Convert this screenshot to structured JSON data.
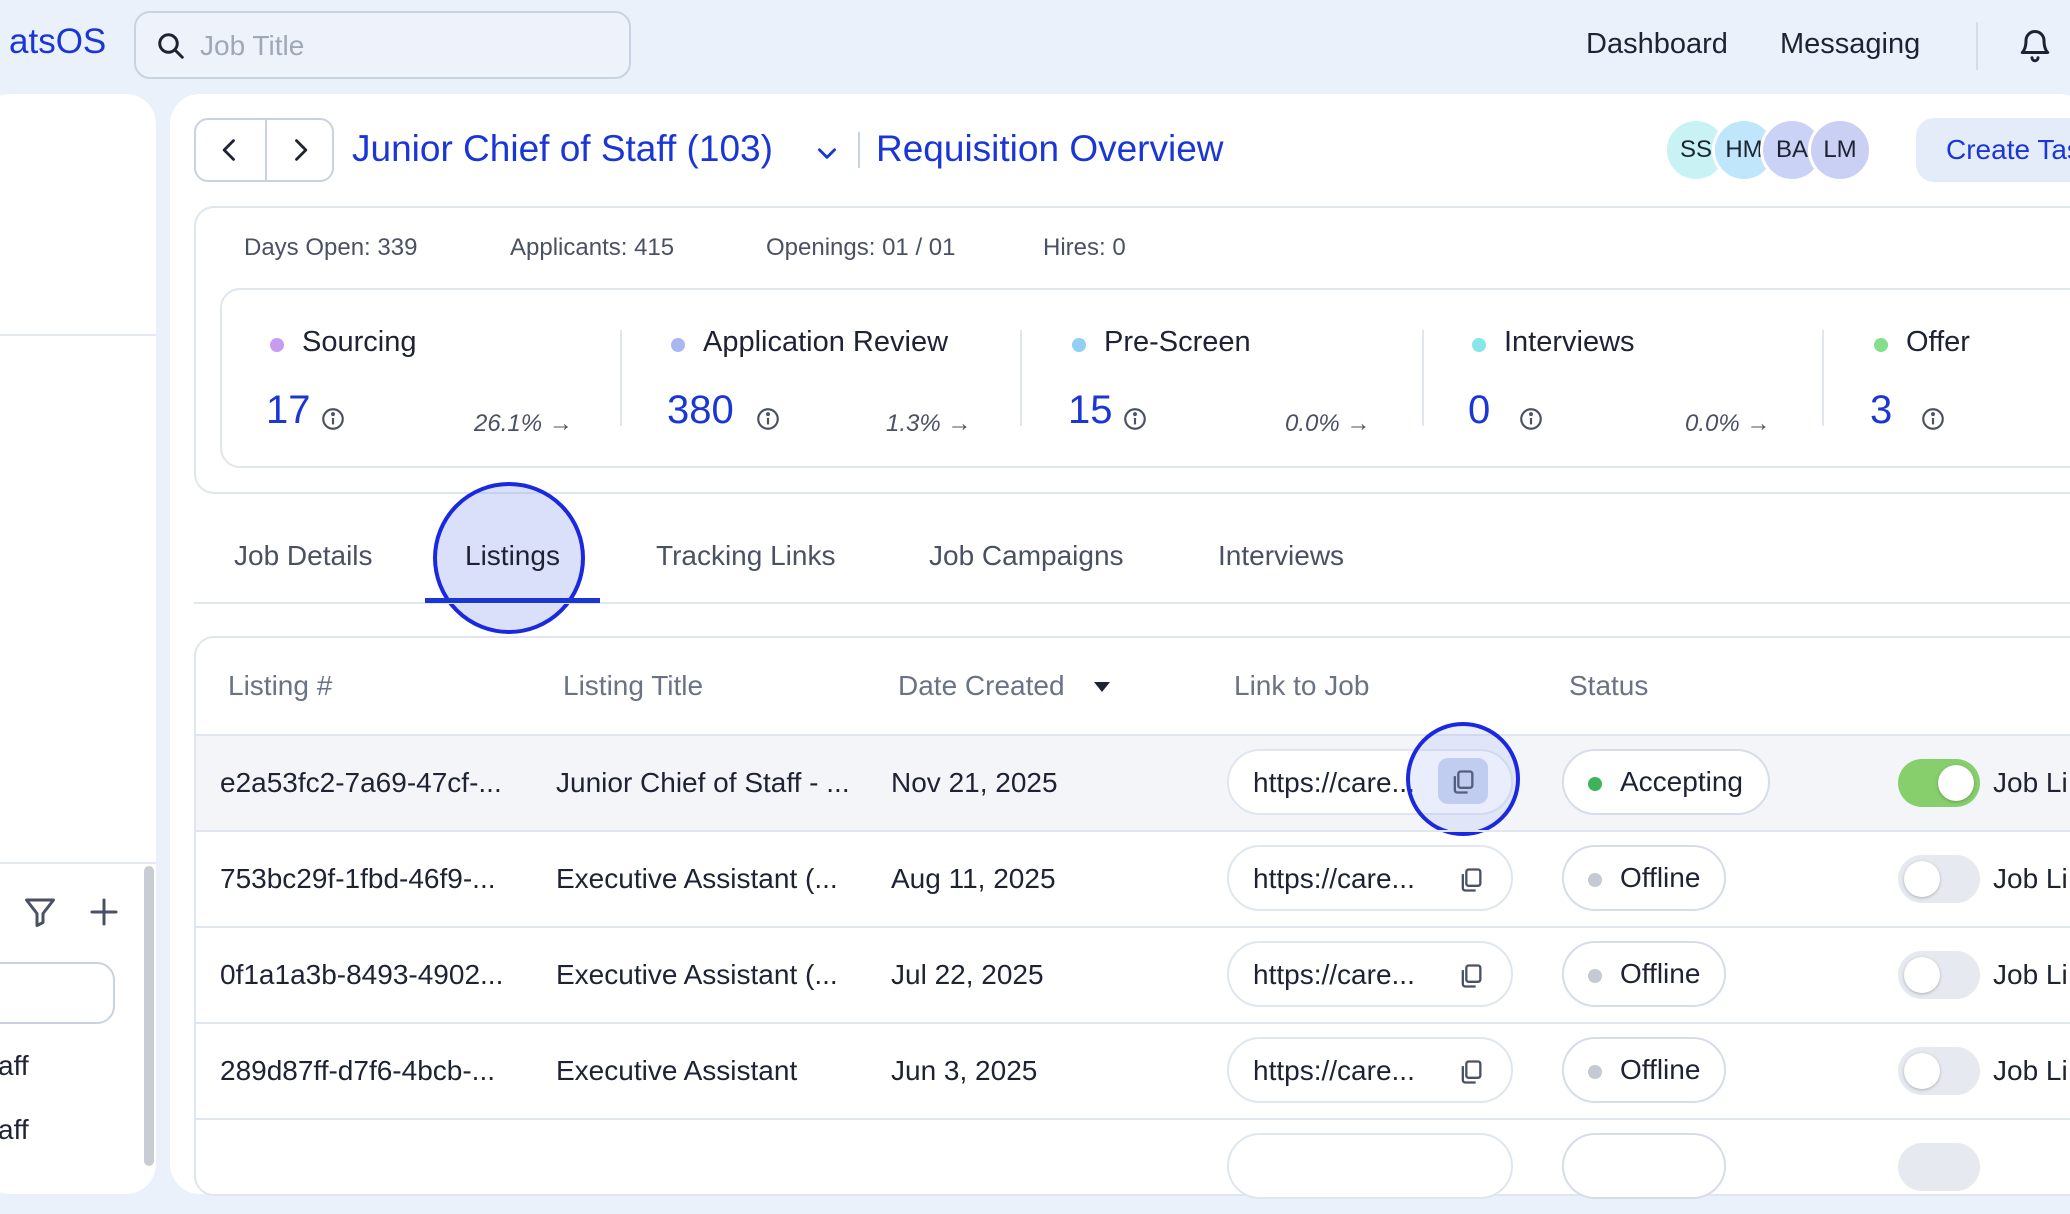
{
  "topbar": {
    "brand": "atsOS",
    "search_placeholder": "Job Title",
    "nav": [
      "Dashboard",
      "Messaging"
    ]
  },
  "sidebar": {
    "items": [
      "aff",
      "aff"
    ]
  },
  "header": {
    "job_title": "Junior Chief of Staff (103)",
    "page_title": "Requisition Overview",
    "avatars": [
      {
        "initials": "SS",
        "color": "#c8f2f4"
      },
      {
        "initials": "HM",
        "color": "#bfe6fb"
      },
      {
        "initials": "BA",
        "color": "#cad2f6"
      },
      {
        "initials": "LM",
        "color": "#c9d0f4"
      }
    ],
    "create_label": "Create Task"
  },
  "stats": {
    "days_open": "Days Open: 339",
    "applicants": "Applicants: 415",
    "openings": "Openings: 01 / 01",
    "hires": "Hires: 0"
  },
  "stages": [
    {
      "label": "Sourcing",
      "count": "17",
      "pct": "26.1% →",
      "color": "#c79cf0"
    },
    {
      "label": "Application Review",
      "count": "380",
      "pct": "1.3% →",
      "color": "#a9b6f2"
    },
    {
      "label": "Pre-Screen",
      "count": "15",
      "pct": "0.0% →",
      "color": "#8fd0f4"
    },
    {
      "label": "Interviews",
      "count": "0",
      "pct": "0.0% →",
      "color": "#86e6ea"
    },
    {
      "label": "Offer",
      "count": "3",
      "pct": "",
      "color": "#84df8c"
    }
  ],
  "tabs": [
    "Job Details",
    "Listings",
    "Tracking Links",
    "Job Campaigns",
    "Interviews"
  ],
  "table": {
    "headers": [
      "Listing #",
      "Listing Title",
      "Date Created",
      "Link to Job",
      "Status"
    ],
    "rows": [
      {
        "id": "e2a53fc2-7a69-47cf-...",
        "title": "Junior Chief of Staff - ...",
        "date": "Nov 21, 2025",
        "link": "https://care...",
        "status": "Accepting",
        "status_color": "#3fb35b",
        "toggle_on": true,
        "toggle_label": "Job Li"
      },
      {
        "id": "753bc29f-1fbd-46f9-...",
        "title": "Executive Assistant (...",
        "date": "Aug 11, 2025",
        "link": "https://care...",
        "status": "Offline",
        "status_color": "#c4c9d3",
        "toggle_on": false,
        "toggle_label": "Job Li"
      },
      {
        "id": "0f1a1a3b-8493-4902...",
        "title": "Executive Assistant (...",
        "date": "Jul 22, 2025",
        "link": "https://care...",
        "status": "Offline",
        "status_color": "#c4c9d3",
        "toggle_on": false,
        "toggle_label": "Job Li"
      },
      {
        "id": "289d87ff-d7f6-4bcb-...",
        "title": "Executive Assistant",
        "date": "Jun 3, 2025",
        "link": "https://care...",
        "status": "Offline",
        "status_color": "#c4c9d3",
        "toggle_on": false,
        "toggle_label": "Job Li"
      }
    ]
  },
  "colors": {
    "accent": "#1a37d6",
    "toggle_on": "#86cf6c",
    "toggle_off": "#e6e9ef"
  }
}
